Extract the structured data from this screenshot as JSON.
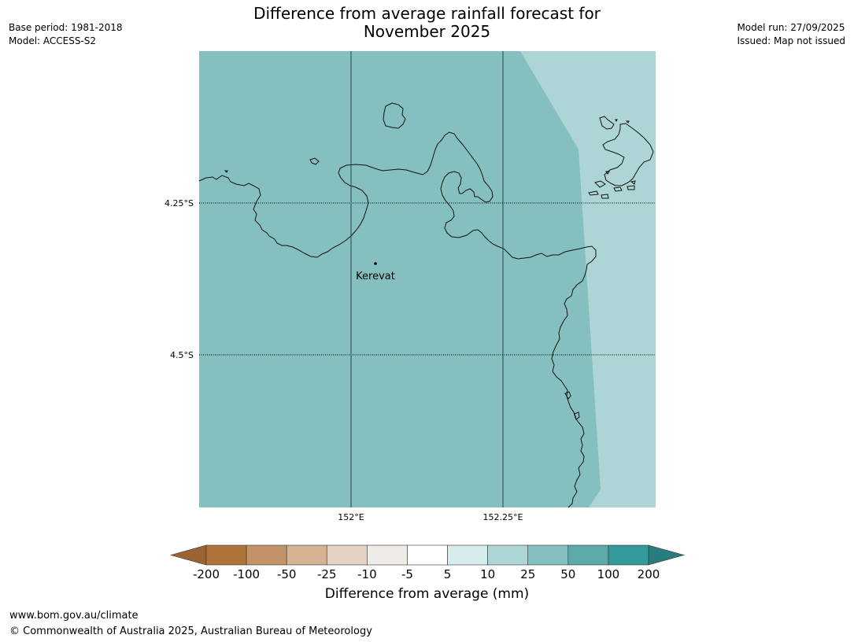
{
  "header": {
    "title_line1": "Difference from average rainfall forecast for",
    "title_line2": "November 2025",
    "base_period": "Base period: 1981-2018",
    "model": "Model: ACCESS-S2",
    "model_run": "Model run: 27/09/2025",
    "issued": "Issued: Map not issued"
  },
  "map": {
    "lat_labels": [
      "4.25°S",
      "4.5°S"
    ],
    "lon_labels": [
      "152°E",
      "152.25°E"
    ],
    "place": {
      "name": "Kerevat"
    },
    "fill_main": "#86bfbf",
    "fill_east": "#add5d5",
    "coast_color": "#111111"
  },
  "colorbar": {
    "title": "Difference from average (mm)",
    "tick_labels": [
      "-200",
      "-100",
      "-50",
      "-25",
      "-10",
      "-5",
      "5",
      "10",
      "25",
      "50",
      "100",
      "200"
    ],
    "colors": [
      "#9b6331",
      "#b0743b",
      "#c29268",
      "#d5b293",
      "#e4d3c2",
      "#efebe6",
      "#ffffff",
      "#d6ebeb",
      "#add5d5",
      "#86bfbf",
      "#5caaaa",
      "#339999",
      "#2a7c7c"
    ]
  },
  "footer": {
    "url": "www.bom.gov.au/climate",
    "copyright": "© Commonwealth of Australia 2025, Australian Bureau of Meteorology"
  }
}
